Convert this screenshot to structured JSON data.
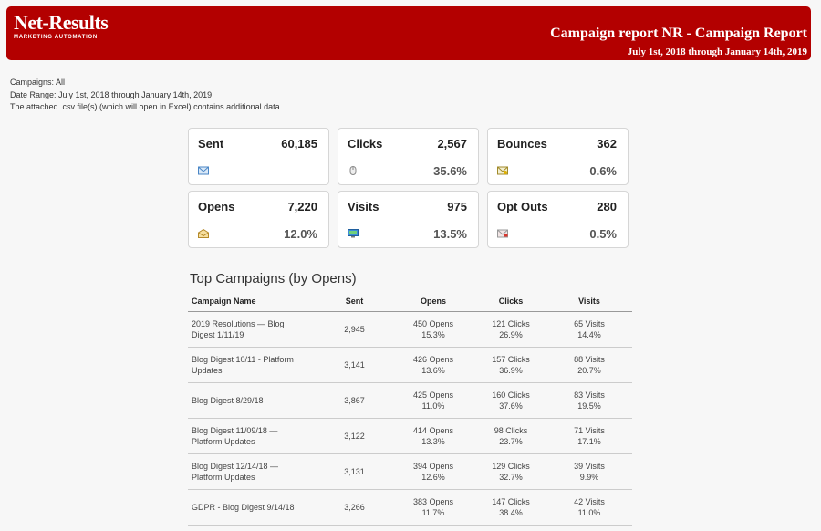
{
  "header": {
    "logo_main": "Net-Results",
    "logo_sub": "MARKETING AUTOMATION",
    "title": "Campaign report NR - Campaign Report",
    "date_range": "July 1st, 2018 through January 14th, 2019"
  },
  "meta": {
    "campaigns": "Campaigns: All",
    "date_range": "Date Range: July 1st, 2018 through January 14th, 2019",
    "note": "The attached .csv file(s) (which will open in Excel) contains additional data."
  },
  "cards": [
    {
      "label": "Sent",
      "value": "60,185",
      "pct": "",
      "icon": "envelope-icon"
    },
    {
      "label": "Clicks",
      "value": "2,567",
      "pct": "35.6%",
      "icon": "mouse-icon"
    },
    {
      "label": "Bounces",
      "value": "362",
      "pct": "0.6%",
      "icon": "bounce-envelope-icon"
    },
    {
      "label": "Opens",
      "value": "7,220",
      "pct": "12.0%",
      "icon": "open-envelope-icon"
    },
    {
      "label": "Visits",
      "value": "975",
      "pct": "13.5%",
      "icon": "monitor-icon"
    },
    {
      "label": "Opt Outs",
      "value": "280",
      "pct": "0.5%",
      "icon": "optout-envelope-icon"
    }
  ],
  "top_campaigns": {
    "title": "Top Campaigns (by Opens)",
    "columns": [
      "Campaign Name",
      "Sent",
      "Opens",
      "Clicks",
      "Visits"
    ],
    "rows": [
      {
        "name": [
          "2019 Resolutions — Blog",
          "Digest 1/11/19"
        ],
        "sent": "2,945",
        "opens": "450 Opens",
        "opens_pct": "15.3%",
        "clicks": "121 Clicks",
        "clicks_pct": "26.9%",
        "visits": "65 Visits",
        "visits_pct": "14.4%"
      },
      {
        "name": [
          "Blog Digest 10/11 - Platform",
          "Updates"
        ],
        "sent": "3,141",
        "opens": "426 Opens",
        "opens_pct": "13.6%",
        "clicks": "157 Clicks",
        "clicks_pct": "36.9%",
        "visits": "88 Visits",
        "visits_pct": "20.7%"
      },
      {
        "name": [
          "Blog Digest 8/29/18",
          ""
        ],
        "sent": "3,867",
        "opens": "425 Opens",
        "opens_pct": "11.0%",
        "clicks": "160 Clicks",
        "clicks_pct": "37.6%",
        "visits": "83 Visits",
        "visits_pct": "19.5%"
      },
      {
        "name": [
          "Blog Digest 11/09/18 —",
          "Platform Updates"
        ],
        "sent": "3,122",
        "opens": "414 Opens",
        "opens_pct": "13.3%",
        "clicks": "98 Clicks",
        "clicks_pct": "23.7%",
        "visits": "71 Visits",
        "visits_pct": "17.1%"
      },
      {
        "name": [
          "Blog Digest 12/14/18 —",
          "Platform Updates"
        ],
        "sent": "3,131",
        "opens": "394 Opens",
        "opens_pct": "12.6%",
        "clicks": "129 Clicks",
        "clicks_pct": "32.7%",
        "visits": "39 Visits",
        "visits_pct": "9.9%"
      },
      {
        "name": [
          "GDPR - Blog Digest 9/14/18",
          ""
        ],
        "sent": "3,266",
        "opens": "383 Opens",
        "opens_pct": "11.7%",
        "clicks": "147 Clicks",
        "clicks_pct": "38.4%",
        "visits": "42 Visits",
        "visits_pct": "11.0%"
      }
    ]
  },
  "colors": {
    "header_bg": "#b30000",
    "accent": "#2b7bd8"
  }
}
